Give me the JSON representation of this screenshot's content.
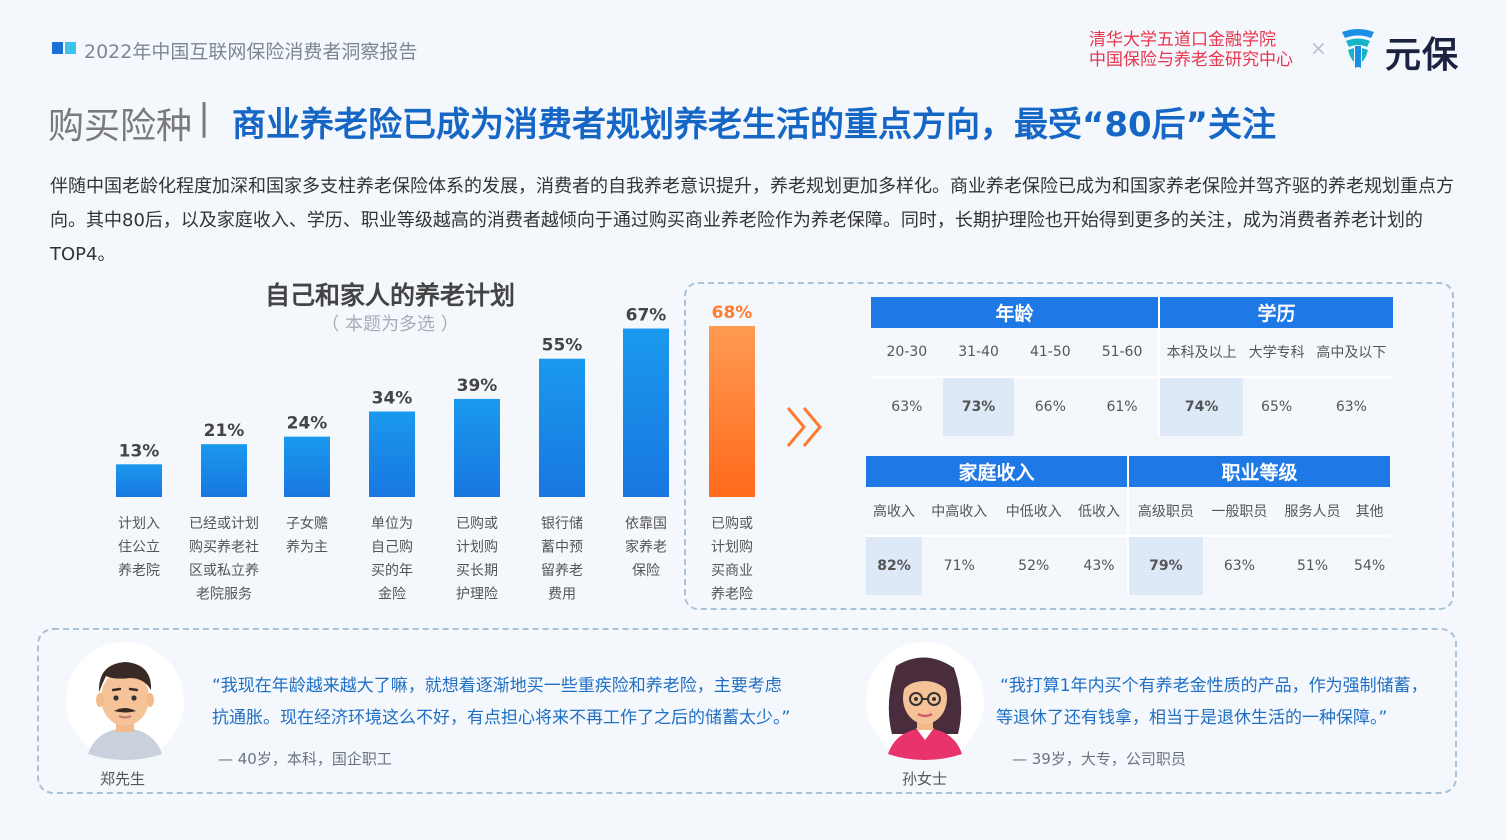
{
  "header": {
    "report_title": "2022年中国互联网保险消费者洞察报告",
    "institution_line1": "清华大学五道口金融学院",
    "institution_line2": "中国保险与养老金研究中心",
    "times_sign": "×",
    "brand": "元保"
  },
  "section": {
    "label": "购买险种",
    "separator": "|",
    "headline": "商业养老险已成为消费者规划养老生活的重点方向，最受“80后”关注"
  },
  "intro": "伴随中国老龄化程度加深和国家多支柱养老保险体系的发展，消费者的自我养老意识提升，养老规划更加多样化。商业养老保险已成为和国家养老保险并驾齐驱的养老规划重点方向。其中80后，以及家庭收入、学历、职业等级越高的消费者越倾向于通过购买商业养老险作为养老保障。同时，长期护理险也开始得到更多的关注，成为消费者养老计划的TOP4。",
  "chart_data": {
    "type": "bar",
    "title": "自己和家人的养老计划",
    "subtitle": "（ 本题为多选 ）",
    "categories": [
      "计划入住公立养老院",
      "已经或计划购买养老社区或私立养老院服务",
      "子女赡养为主",
      "单位为自己购买的年金险",
      "已购或计划购买长期护理险",
      "银行储蓄中预留养老费用",
      "依靠国家养老保险",
      "已购或计划购买商业养老险"
    ],
    "category_lines": [
      [
        "计划入",
        "住公立",
        "养老院"
      ],
      [
        "已经或计划",
        "购买养老社",
        "区或私立养",
        "老院服务"
      ],
      [
        "子女赡",
        "养为主"
      ],
      [
        "单位为",
        "自己购",
        "买的年",
        "金险"
      ],
      [
        "已购或",
        "计划购",
        "买长期",
        "护理险"
      ],
      [
        "银行储",
        "蓄中预",
        "留养老",
        "费用"
      ],
      [
        "依靠国",
        "家养老",
        "保险"
      ],
      [
        "已购或",
        "计划购",
        "买商业",
        "养老险"
      ]
    ],
    "values": [
      13,
      21,
      24,
      34,
      39,
      55,
      67,
      68
    ],
    "value_labels": [
      "13%",
      "21%",
      "24%",
      "34%",
      "39%",
      "55%",
      "67%",
      "68%"
    ],
    "highlight_index": 7,
    "ylim": [
      0,
      70
    ],
    "colors": {
      "normal": "#1a8ce8",
      "highlight": "#ff7b2e"
    }
  },
  "tables": {
    "age_edu": {
      "groups": [
        "年龄",
        "学历"
      ],
      "sub": [
        "20-30",
        "31-40",
        "41-50",
        "51-60",
        "本科及以上",
        "大学专科",
        "高中及以下"
      ],
      "values": [
        "63%",
        "73%",
        "66%",
        "61%",
        "74%",
        "65%",
        "63%"
      ],
      "highlight": [
        1,
        4
      ]
    },
    "income_job": {
      "groups": [
        "家庭收入",
        "职业等级"
      ],
      "sub": [
        "高收入",
        "中高收入",
        "中低收入",
        "低收入",
        "高级职员",
        "一般职员",
        "服务人员",
        "其他"
      ],
      "values": [
        "82%",
        "71%",
        "52%",
        "43%",
        "79%",
        "63%",
        "51%",
        "54%"
      ],
      "highlight": [
        0,
        4
      ]
    }
  },
  "quotes": [
    {
      "name": "郑先生",
      "line1": "“我现在年龄越来越大了嘛，就想着逐渐地买一些重疾险和养老险，主要考虑",
      "line2": "抗通胀。现在经济环境这么不好，有点担心将来不再工作了之后的储蓄太少。”",
      "source": "— 40岁，本科，国企职工"
    },
    {
      "name": "孙女士",
      "line1": "“我打算1年内买个有养老金性质的产品，作为强制储蓄，",
      "line2": "等退休了还有钱拿，相当于是退休生活的一种保障。”",
      "source": "— 39岁，大专，公司职员"
    }
  ]
}
